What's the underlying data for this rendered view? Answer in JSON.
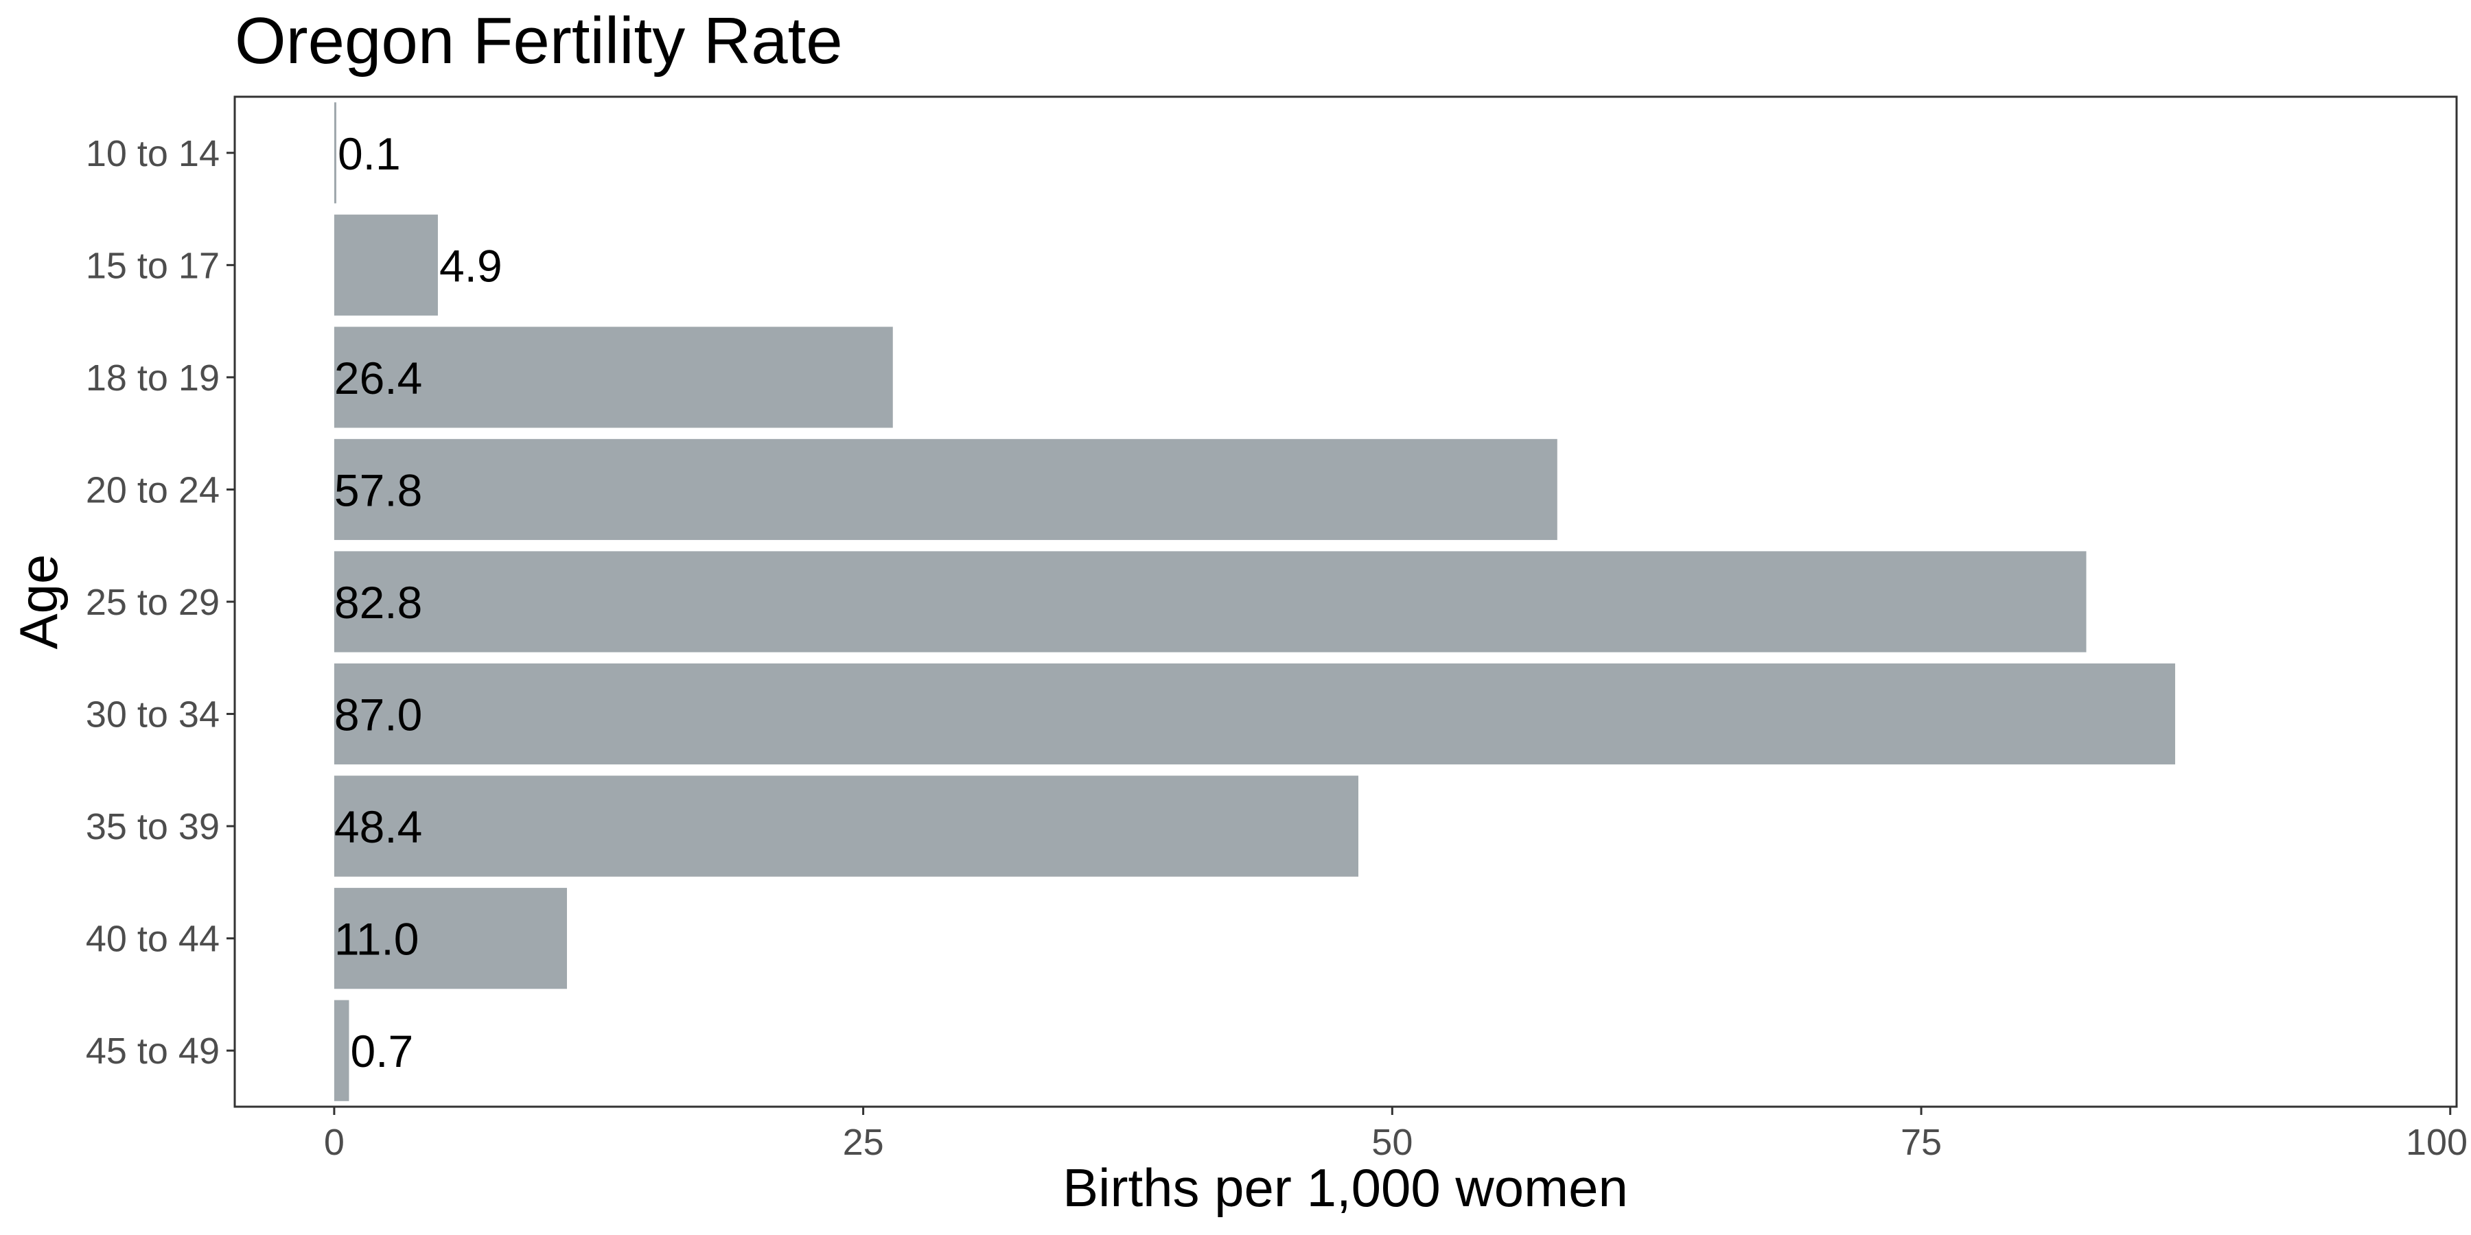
{
  "chart_data": {
    "type": "bar",
    "orientation": "horizontal",
    "title": "Oregon Fertility Rate",
    "xlabel": "Births per 1,000 women",
    "ylabel": "Age",
    "categories": [
      "10 to 14",
      "15 to 17",
      "18 to 19",
      "20 to 24",
      "25 to 29",
      "30 to 34",
      "35 to 39",
      "40 to 44",
      "45 to 49"
    ],
    "values": [
      0.1,
      4.9,
      26.4,
      57.8,
      82.8,
      87.0,
      48.4,
      11.0,
      0.7
    ],
    "data_labels": [
      "0.1",
      "4.9",
      "26.4",
      "57.8",
      "82.8",
      "87.0",
      "48.4",
      "11.0",
      "0.7"
    ],
    "x_ticks": [
      0,
      25,
      50,
      75,
      100
    ],
    "x_tick_labels": [
      "0",
      "25",
      "50",
      "75",
      "100"
    ],
    "xlim": [
      -4.7,
      100.3
    ],
    "grid": false,
    "bar_color": "#a0a8ad"
  }
}
